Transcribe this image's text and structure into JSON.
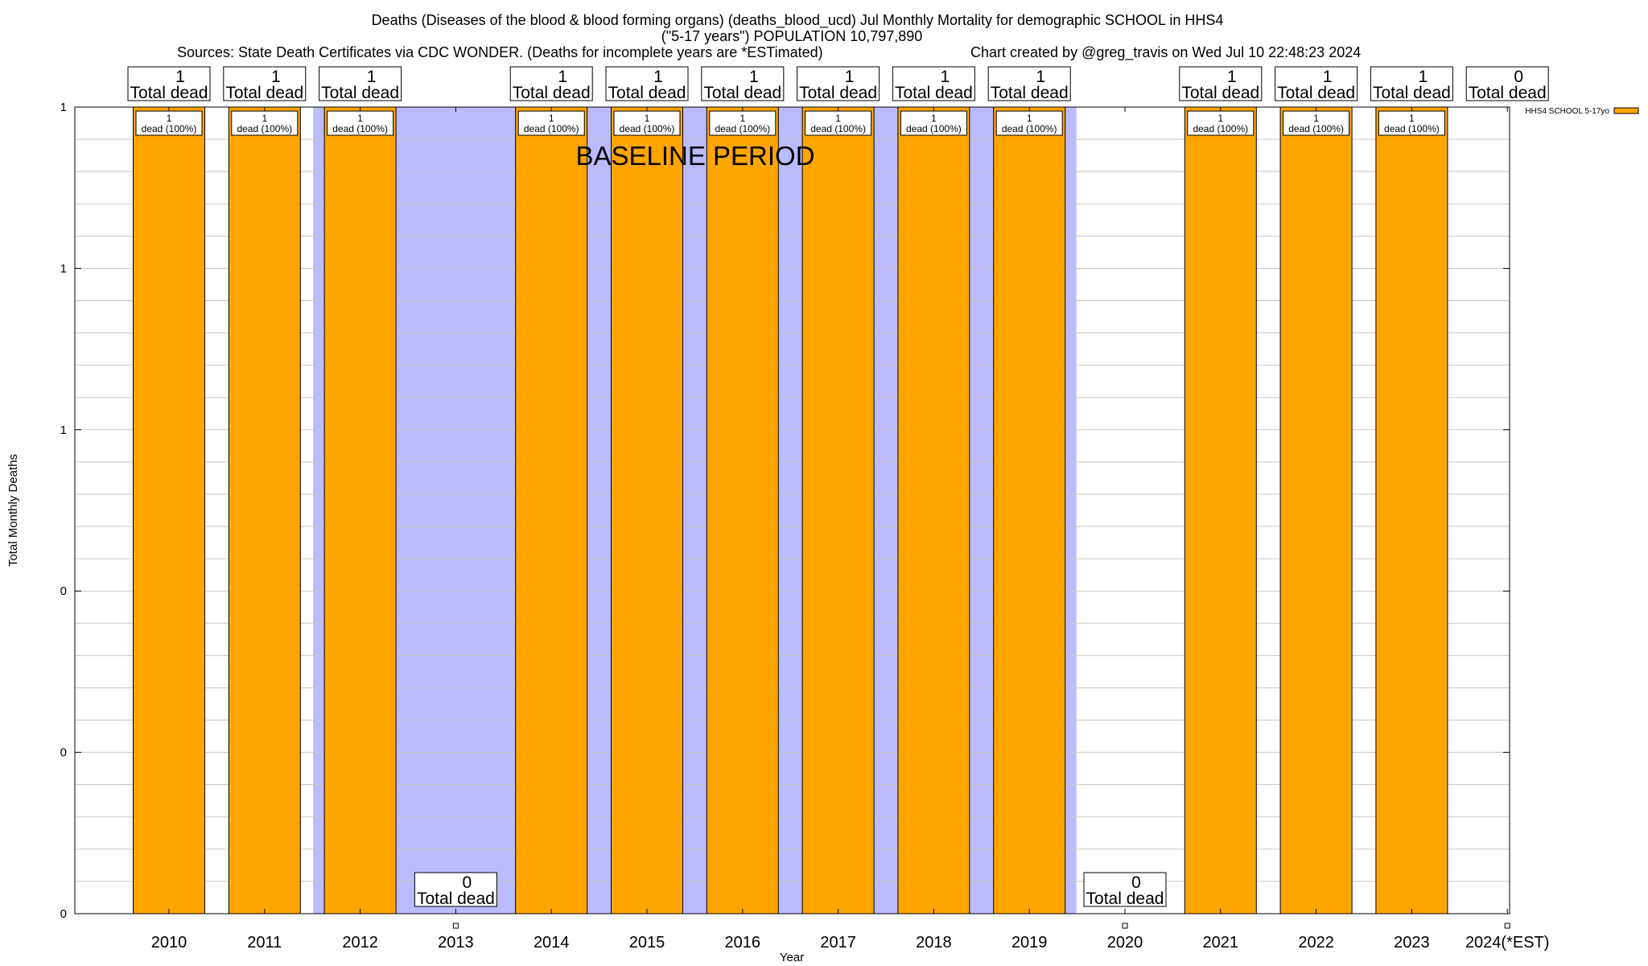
{
  "chart_data": {
    "type": "bar",
    "title_lines": [
      "Deaths (Diseases of the blood & blood forming organs) (deaths_blood_ucd) Jul Monthly Mortality for demographic SCHOOL in HHS4",
      "(\"5-17 years\") POPULATION 10,797,890"
    ],
    "sources_text": "Sources: State Death Certificates via CDC WONDER. (Deaths for incomplete years are *ESTimated)",
    "credit_text": "Chart created by @greg_travis on Wed Jul 10 22:48:23 2024",
    "xlabel": "Year",
    "ylabel": "Total Monthly Deaths",
    "categories": [
      "2010",
      "2011",
      "2012",
      "2013",
      "2014",
      "2015",
      "2016",
      "2017",
      "2018",
      "2019",
      "2020",
      "2021",
      "2022",
      "2023",
      "2024(*EST)"
    ],
    "series": [
      {
        "name": "HHS4 SCHOOL 5-17yo",
        "color": "#ffa500",
        "values": [
          1,
          1,
          1,
          0,
          1,
          1,
          1,
          1,
          1,
          1,
          0,
          1,
          1,
          1,
          0
        ]
      }
    ],
    "total_labels": [
      "1",
      "1",
      "1",
      "0",
      "1",
      "1",
      "1",
      "1",
      "1",
      "1",
      "0",
      "1",
      "1",
      "1",
      "0"
    ],
    "total_suffix": "Total dead",
    "inbar_label": "dead (100%)",
    "ylim": [
      0,
      1
    ],
    "ytick_labels": [
      "0",
      "0",
      "0",
      "1",
      "1",
      "1"
    ],
    "baseline": {
      "label": "BASELINE PERIOD",
      "start_year": "2012",
      "end_year": "2019",
      "color": "#bbbbff"
    },
    "grid": true,
    "legend_position": "top-right"
  }
}
